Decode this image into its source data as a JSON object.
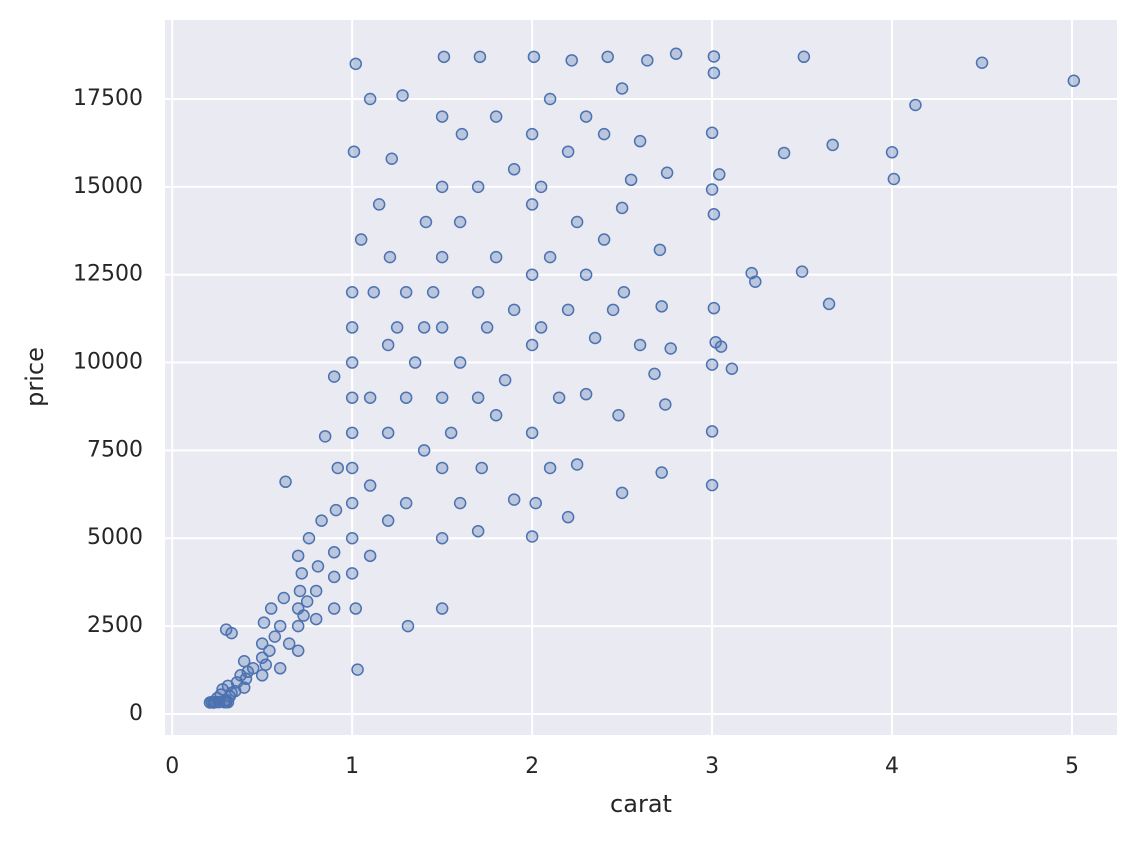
{
  "chart_data": {
    "type": "scatter",
    "xlabel": "carat",
    "ylabel": "price",
    "xlim": [
      -0.04,
      5.25
    ],
    "ylim": [
      -599,
      19748
    ],
    "xticks": [
      0,
      1,
      2,
      3,
      4,
      5
    ],
    "yticks": [
      0,
      2500,
      5000,
      7500,
      10000,
      12500,
      15000,
      17500
    ],
    "grid": true,
    "color": "#4c72b0",
    "x": [
      0.23,
      0.21,
      0.23,
      0.29,
      0.31,
      0.24,
      0.26,
      0.22,
      0.3,
      0.23,
      0.3,
      0.25,
      0.32,
      0.27,
      0.33,
      0.35,
      0.28,
      0.31,
      0.36,
      0.4,
      0.41,
      0.38,
      0.42,
      0.4,
      0.33,
      0.3,
      0.45,
      0.5,
      0.5,
      0.5,
      0.52,
      0.51,
      0.55,
      0.54,
      0.57,
      0.6,
      0.6,
      0.62,
      0.63,
      0.65,
      0.7,
      0.7,
      0.7,
      0.71,
      0.72,
      0.7,
      0.73,
      0.75,
      0.76,
      0.8,
      0.8,
      0.81,
      0.83,
      0.9,
      0.9,
      0.9,
      0.91,
      0.9,
      0.92,
      0.85,
      1.0,
      1.0,
      1.0,
      1.0,
      1.0,
      1.0,
      1.0,
      1.0,
      1.0,
      1.01,
      1.02,
      1.03,
      1.02,
      1.05,
      1.1,
      1.1,
      1.1,
      1.12,
      1.1,
      1.15,
      1.2,
      1.2,
      1.2,
      1.21,
      1.22,
      1.25,
      1.3,
      1.3,
      1.3,
      1.31,
      1.28,
      1.35,
      1.4,
      1.4,
      1.41,
      1.45,
      1.5,
      1.5,
      1.5,
      1.5,
      1.5,
      1.5,
      1.5,
      1.5,
      1.51,
      1.55,
      1.6,
      1.6,
      1.6,
      1.61,
      1.7,
      1.7,
      1.7,
      1.7,
      1.71,
      1.72,
      1.75,
      1.8,
      1.8,
      1.8,
      1.85,
      1.9,
      1.9,
      1.9,
      2.0,
      2.0,
      2.0,
      2.0,
      2.0,
      2.0,
      2.01,
      2.02,
      2.05,
      2.05,
      2.1,
      2.1,
      2.1,
      2.15,
      2.2,
      2.2,
      2.2,
      2.22,
      2.25,
      2.25,
      2.3,
      2.3,
      2.3,
      2.35,
      2.4,
      2.4,
      2.42,
      2.45,
      2.48,
      2.5,
      2.5,
      2.5,
      2.51,
      2.55,
      2.6,
      2.6,
      2.64,
      2.68,
      2.72,
      2.71,
      2.72,
      2.74,
      2.75,
      2.77,
      2.8,
      3.0,
      3.0,
      3.01,
      3.01,
      3.02,
      3.0,
      3.01,
      3.01,
      3.0,
      3.0,
      3.04,
      3.05,
      3.11,
      3.22,
      3.24,
      3.4,
      3.5,
      3.51,
      3.65,
      3.67,
      4.0,
      4.01,
      4.13,
      4.5,
      5.01
    ],
    "values": [
      326,
      326,
      327,
      334,
      335,
      336,
      337,
      337,
      339,
      340,
      400,
      450,
      500,
      550,
      600,
      650,
      700,
      800,
      900,
      750,
      1000,
      1100,
      1200,
      1500,
      2300,
      2400,
      1300,
      1100,
      1600,
      2000,
      1400,
      2600,
      3000,
      1800,
      2200,
      1300,
      2500,
      3300,
      6607,
      2000,
      1800,
      2500,
      3000,
      3500,
      4000,
      4500,
      2800,
      3200,
      5000,
      2700,
      3500,
      4200,
      5500,
      3000,
      3900,
      4600,
      5800,
      9600,
      7000,
      7900,
      4000,
      5000,
      6000,
      7000,
      8000,
      9000,
      10000,
      11000,
      12000,
      16000,
      18500,
      1262,
      3000,
      13500,
      4500,
      6500,
      9000,
      12000,
      17500,
      14500,
      5500,
      8000,
      10500,
      13000,
      15800,
      11000,
      6000,
      9000,
      12000,
      2500,
      17600,
      10000,
      7500,
      11000,
      14000,
      12000,
      3000,
      5000,
      7000,
      9000,
      11000,
      13000,
      15000,
      17000,
      18700,
      8000,
      6000,
      10000,
      14000,
      16500,
      5200,
      9000,
      12000,
      15000,
      18700,
      7000,
      11000,
      8500,
      13000,
      17000,
      9500,
      6100,
      11500,
      15500,
      5051,
      8000,
      10500,
      12500,
      14500,
      16500,
      18700,
      6000,
      11000,
      15000,
      7000,
      13000,
      17500,
      9000,
      5600,
      11500,
      16000,
      18600,
      7100,
      14000,
      9100,
      12500,
      17000,
      10700,
      13500,
      16500,
      18700,
      11500,
      8500,
      6291,
      14400,
      17800,
      12000,
      15200,
      10500,
      16300,
      18600,
      9678,
      6870,
      13207,
      11600,
      8807,
      15400,
      10400,
      18788,
      6512,
      8040,
      18242,
      18710,
      10577,
      9941,
      11548,
      14220,
      16538,
      14925,
      15354,
      10453,
      9823,
      12545,
      12300,
      15964,
      12587,
      18701,
      11668,
      16193,
      15984,
      15223,
      17329,
      18531,
      18018
    ]
  }
}
